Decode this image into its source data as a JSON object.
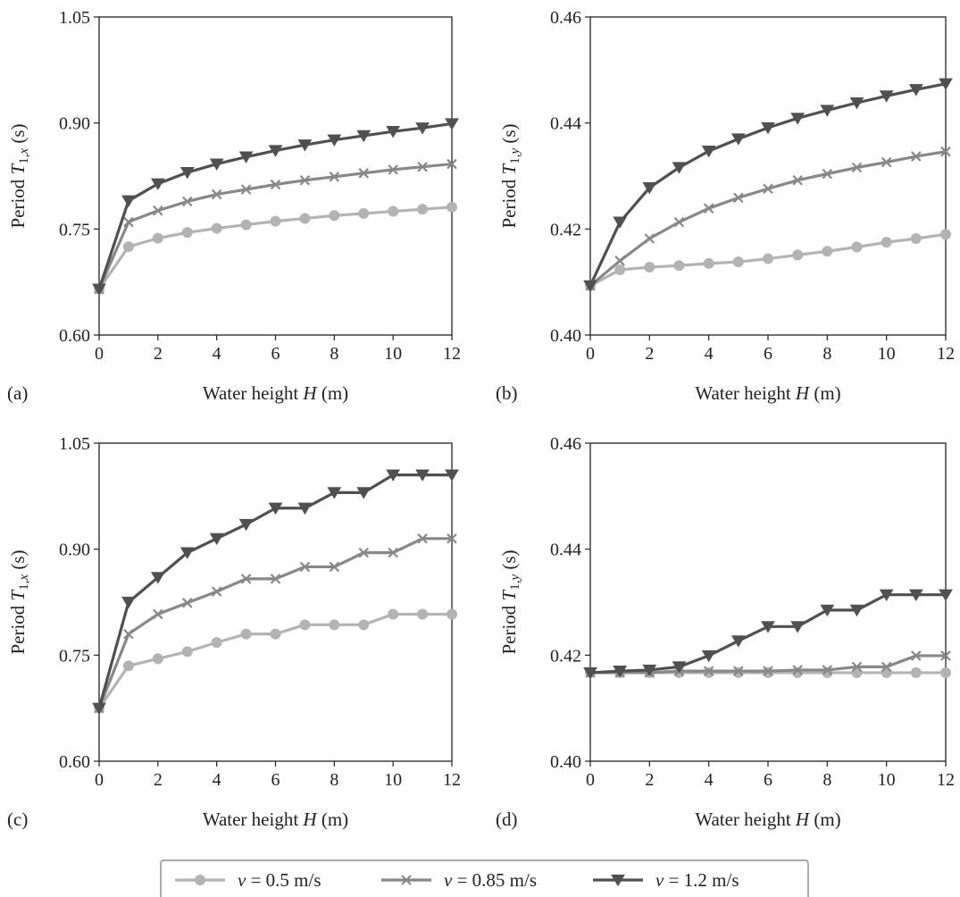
{
  "legend": {
    "items": [
      {
        "label": "ν = 0.5 m/s",
        "color": "#b3b3b3",
        "marker": "circle"
      },
      {
        "label": "ν = 0.85 m/s",
        "color": "#888888",
        "marker": "x"
      },
      {
        "label": "ν = 1.2 m/s",
        "color": "#505050",
        "marker": "triangle-down"
      }
    ]
  },
  "chart_data": [
    {
      "type": "line",
      "panel": "(a)",
      "xlabel": "Water height H (m)",
      "ylabel": "Period T1,x (s)",
      "xlim": [
        0,
        12
      ],
      "ylim": [
        0.6,
        1.05
      ],
      "xticks": [
        0,
        2,
        4,
        6,
        8,
        10,
        12
      ],
      "yticks": [
        0.6,
        0.75,
        0.9,
        1.05
      ],
      "ytick_labels": [
        "0.60",
        "0.75",
        "0.90",
        "1.05"
      ],
      "x": [
        0,
        1,
        2,
        3,
        4,
        5,
        6,
        7,
        8,
        9,
        10,
        11,
        12
      ],
      "series": [
        {
          "name": "ν = 0.5 m/s",
          "values": [
            0.665,
            0.725,
            0.737,
            0.745,
            0.751,
            0.756,
            0.761,
            0.765,
            0.769,
            0.772,
            0.775,
            0.778,
            0.781
          ]
        },
        {
          "name": "ν = 0.85 m/s",
          "values": [
            0.665,
            0.76,
            0.776,
            0.789,
            0.799,
            0.806,
            0.813,
            0.819,
            0.824,
            0.829,
            0.834,
            0.838,
            0.842
          ]
        },
        {
          "name": "ν = 1.2 m/s",
          "values": [
            0.665,
            0.79,
            0.814,
            0.83,
            0.842,
            0.852,
            0.861,
            0.869,
            0.876,
            0.882,
            0.888,
            0.893,
            0.899
          ]
        }
      ]
    },
    {
      "type": "line",
      "panel": "(b)",
      "xlabel": "Water height H (m)",
      "ylabel": "Period T1,y (s)",
      "xlim": [
        0,
        12
      ],
      "ylim": [
        0.4,
        0.46
      ],
      "xticks": [
        0,
        2,
        4,
        6,
        8,
        10,
        12
      ],
      "yticks": [
        0.4,
        0.42,
        0.44,
        0.46
      ],
      "ytick_labels": [
        "0.40",
        "0.42",
        "0.44",
        "0.46"
      ],
      "x": [
        0,
        1,
        2,
        3,
        4,
        5,
        6,
        7,
        8,
        9,
        10,
        11,
        12
      ],
      "series": [
        {
          "name": "ν = 0.5 m/s",
          "values": [
            0.4093,
            0.4123,
            0.4128,
            0.4131,
            0.4135,
            0.4138,
            0.4144,
            0.4151,
            0.4158,
            0.4166,
            0.4175,
            0.4182,
            0.419
          ]
        },
        {
          "name": "ν = 0.85 m/s",
          "values": [
            0.4093,
            0.414,
            0.4182,
            0.4213,
            0.4239,
            0.4259,
            0.4276,
            0.4292,
            0.4304,
            0.4316,
            0.4326,
            0.4337,
            0.4346
          ]
        },
        {
          "name": "ν = 1.2 m/s",
          "values": [
            0.4093,
            0.4213,
            0.4278,
            0.4316,
            0.4347,
            0.437,
            0.4391,
            0.4409,
            0.4424,
            0.4438,
            0.4451,
            0.4463,
            0.4474
          ]
        }
      ]
    },
    {
      "type": "line",
      "panel": "(c)",
      "xlabel": "Water height H (m)",
      "ylabel": "Period T1,x (s)",
      "xlim": [
        0,
        12
      ],
      "ylim": [
        0.6,
        1.05
      ],
      "xticks": [
        0,
        2,
        4,
        6,
        8,
        10,
        12
      ],
      "yticks": [
        0.6,
        0.75,
        0.9,
        1.05
      ],
      "ytick_labels": [
        "0.60",
        "0.75",
        "0.90",
        "1.05"
      ],
      "x": [
        0,
        1,
        2,
        3,
        4,
        5,
        6,
        7,
        8,
        9,
        10,
        11,
        12
      ],
      "series": [
        {
          "name": "ν = 0.5 m/s",
          "values": [
            0.675,
            0.735,
            0.745,
            0.755,
            0.768,
            0.78,
            0.78,
            0.793,
            0.793,
            0.793,
            0.808,
            0.808,
            0.808
          ]
        },
        {
          "name": "ν = 0.85 m/s",
          "values": [
            0.675,
            0.78,
            0.808,
            0.824,
            0.84,
            0.858,
            0.858,
            0.875,
            0.875,
            0.895,
            0.895,
            0.915,
            0.915
          ]
        },
        {
          "name": "ν = 1.2 m/s",
          "values": [
            0.675,
            0.825,
            0.86,
            0.895,
            0.915,
            0.935,
            0.958,
            0.958,
            0.98,
            0.98,
            1.005,
            1.005,
            1.005
          ]
        }
      ]
    },
    {
      "type": "line",
      "panel": "(d)",
      "xlabel": "Water height H (m)",
      "ylabel": "Period T1,y (s)",
      "xlim": [
        0,
        12
      ],
      "ylim": [
        0.4,
        0.46
      ],
      "xticks": [
        0,
        2,
        4,
        6,
        8,
        10,
        12
      ],
      "yticks": [
        0.4,
        0.42,
        0.44,
        0.46
      ],
      "ytick_labels": [
        "0.40",
        "0.42",
        "0.44",
        "0.46"
      ],
      "x": [
        0,
        1,
        2,
        3,
        4,
        5,
        6,
        7,
        8,
        9,
        10,
        11,
        12
      ],
      "series": [
        {
          "name": "ν = 0.5 m/s",
          "values": [
            0.4167,
            0.4167,
            0.4167,
            0.4167,
            0.4167,
            0.4167,
            0.4167,
            0.4167,
            0.4167,
            0.4167,
            0.4167,
            0.4167,
            0.4167
          ]
        },
        {
          "name": "ν = 0.85 m/s",
          "values": [
            0.4167,
            0.4167,
            0.4167,
            0.417,
            0.417,
            0.417,
            0.417,
            0.4172,
            0.4172,
            0.4178,
            0.4178,
            0.4199,
            0.4199
          ]
        },
        {
          "name": "ν = 1.2 m/s",
          "values": [
            0.4167,
            0.417,
            0.4172,
            0.4178,
            0.4199,
            0.4227,
            0.4254,
            0.4254,
            0.4285,
            0.4285,
            0.4314,
            0.4314,
            0.4314
          ]
        }
      ]
    }
  ]
}
